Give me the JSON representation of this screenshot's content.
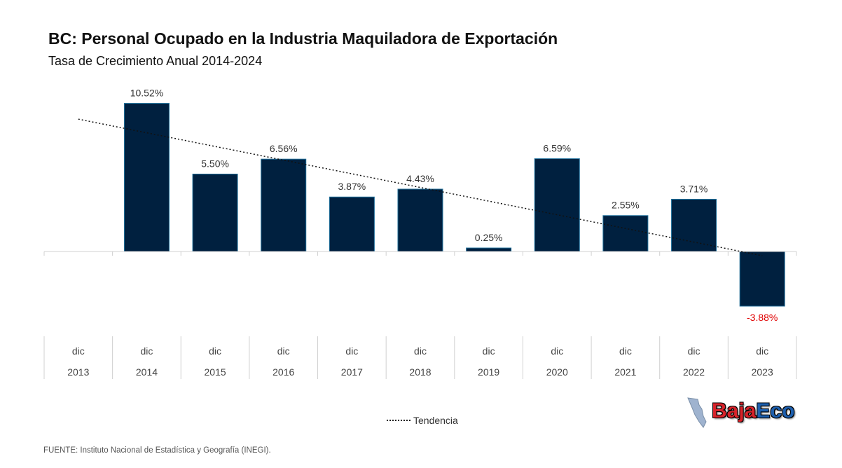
{
  "colors": {
    "bar": "#00203f",
    "bar_edge": "#1f6f9a",
    "negative_label": "#e00000",
    "label": "#333333",
    "trend": "#111111"
  },
  "chart_data": {
    "type": "bar",
    "title": "BC: Personal Ocupado en la Industria Maquiladora de Exportación",
    "subtitle": "Tasa de Crecimiento Anual 2014-2024",
    "x_top": [
      "dic",
      "dic",
      "dic",
      "dic",
      "dic",
      "dic",
      "dic",
      "dic",
      "dic",
      "dic",
      "dic"
    ],
    "x_bottom": [
      "2013",
      "2014",
      "2015",
      "2016",
      "2017",
      "2018",
      "2019",
      "2020",
      "2021",
      "2022",
      "2023"
    ],
    "values": [
      null,
      10.52,
      5.5,
      6.56,
      3.87,
      4.43,
      0.25,
      6.59,
      2.55,
      3.71,
      -3.88
    ],
    "data_labels": [
      "",
      "10.52%",
      "5.50%",
      "6.56%",
      "3.87%",
      "4.43%",
      "0.25%",
      "6.59%",
      "2.55%",
      "3.71%",
      "-3.88%"
    ],
    "ylim": [
      -5,
      11
    ],
    "trendline": {
      "name": "Tendencia",
      "style": "dotted",
      "y_start": 9.4,
      "y_end": -0.3
    },
    "legend_position": "bottom-center",
    "grid": false
  },
  "source": "FUENTE: Instituto Nacional de Estadística y Geografía (INEGI).",
  "logo": {
    "part1": "Baja",
    "part2": "Eco"
  }
}
